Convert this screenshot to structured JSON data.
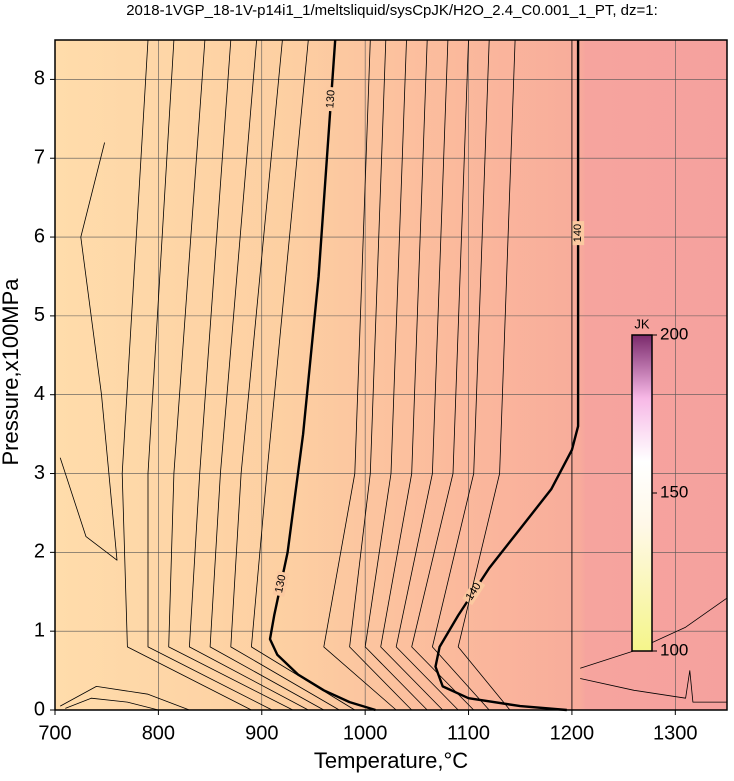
{
  "chart_data": {
    "type": "contour",
    "title": "2018-1VGP_18-1V-p14i1_1/meltsliquid/sysCpJK/H2O_2.4_C0.001_1_PT, dz=1:",
    "x_label": "Temperature,°C",
    "y_label": "Pressure,x100MPa",
    "xlim": [
      700,
      1350
    ],
    "ylim": [
      0,
      8.5
    ],
    "xticks": [
      700,
      800,
      900,
      1000,
      1100,
      1200,
      1300
    ],
    "yticks": [
      0,
      1,
      2,
      3,
      4,
      5,
      6,
      7,
      8
    ],
    "grid": true,
    "contours": [
      {
        "level": 130,
        "bold": true,
        "x": [
          1010,
          985,
          960,
          935,
          915,
          908,
          912,
          925,
          940,
          955,
          963,
          971
        ],
        "y": [
          0,
          0.1,
          0.25,
          0.45,
          0.7,
          0.9,
          1.2,
          2,
          3.5,
          5.5,
          7,
          8.5
        ]
      },
      {
        "level": 140,
        "bold": true,
        "x": [
          1195,
          1150,
          1100,
          1075,
          1068,
          1072,
          1090,
          1120,
          1150,
          1180,
          1200,
          1206,
          1206
        ],
        "y": [
          0,
          0.05,
          0.15,
          0.3,
          0.55,
          0.8,
          1.2,
          1.8,
          2.3,
          2.8,
          3.3,
          3.6,
          8.5
        ]
      },
      {
        "x": [
          1200,
          1200
        ],
        "y": [
          0,
          8.5
        ]
      },
      {
        "x": [
          1030,
          960,
          990,
          1005
        ],
        "y": [
          0,
          0.8,
          3,
          8.5
        ]
      },
      {
        "x": [
          1045,
          985,
          1005,
          1020
        ],
        "y": [
          0,
          0.8,
          3,
          8.5
        ]
      },
      {
        "x": [
          1060,
          1000,
          1025,
          1040
        ],
        "y": [
          0,
          0.8,
          3,
          8.5
        ]
      },
      {
        "x": [
          1075,
          1015,
          1045,
          1060
        ],
        "y": [
          0,
          0.8,
          3,
          8.5
        ]
      },
      {
        "x": [
          1090,
          1030,
          1065,
          1080
        ],
        "y": [
          0,
          0.8,
          3,
          8.5
        ]
      },
      {
        "x": [
          1105,
          1045,
          1085,
          1100
        ],
        "y": [
          0,
          0.8,
          3,
          8.5
        ]
      },
      {
        "x": [
          1120,
          1065,
          1105,
          1120
        ],
        "y": [
          0,
          0.8,
          3,
          8.5
        ]
      },
      {
        "x": [
          1140,
          1090,
          1130,
          1145
        ],
        "y": [
          0,
          0.8,
          3,
          8.5
        ]
      },
      {
        "x": [
          990,
          890,
          905,
          945
        ],
        "y": [
          0,
          0.8,
          3,
          8.5
        ]
      },
      {
        "x": [
          975,
          870,
          880,
          920
        ],
        "y": [
          0,
          0.8,
          3,
          8.5
        ]
      },
      {
        "x": [
          960,
          850,
          860,
          895
        ],
        "y": [
          0,
          0.8,
          3,
          8.5
        ]
      },
      {
        "x": [
          945,
          830,
          840,
          870
        ],
        "y": [
          0,
          0.8,
          3,
          8.5
        ]
      },
      {
        "x": [
          930,
          810,
          815,
          845
        ],
        "y": [
          0,
          0.8,
          3,
          8.5
        ]
      },
      {
        "x": [
          910,
          790,
          790,
          815
        ],
        "y": [
          0,
          0.8,
          3,
          8.5
        ]
      },
      {
        "x": [
          890,
          770,
          765,
          790
        ],
        "y": [
          0,
          0.8,
          3,
          8.5
        ]
      },
      {
        "x": [
          705,
          740,
          790,
          830
        ],
        "y": [
          0.05,
          0.3,
          0.2,
          0
        ]
      },
      {
        "x": [
          710,
          735,
          770,
          800
        ],
        "y": [
          0.02,
          0.15,
          0.1,
          0
        ]
      },
      {
        "x": [
          705,
          730,
          760,
          745,
          725,
          748
        ],
        "y": [
          3.2,
          2.2,
          1.9,
          4,
          6,
          7.2
        ]
      },
      {
        "x": [
          1208,
          1260,
          1310,
          1350
        ],
        "y": [
          0.53,
          0.75,
          1.05,
          1.42
        ]
      },
      {
        "x": [
          1208,
          1260,
          1310,
          1314,
          1317,
          1350
        ],
        "y": [
          0.4,
          0.25,
          0.15,
          0.5,
          0.1,
          0.1
        ]
      }
    ],
    "colorbar": {
      "label": "JK",
      "lim": [
        100,
        200
      ],
      "ticks": [
        100,
        150,
        200
      ]
    }
  }
}
